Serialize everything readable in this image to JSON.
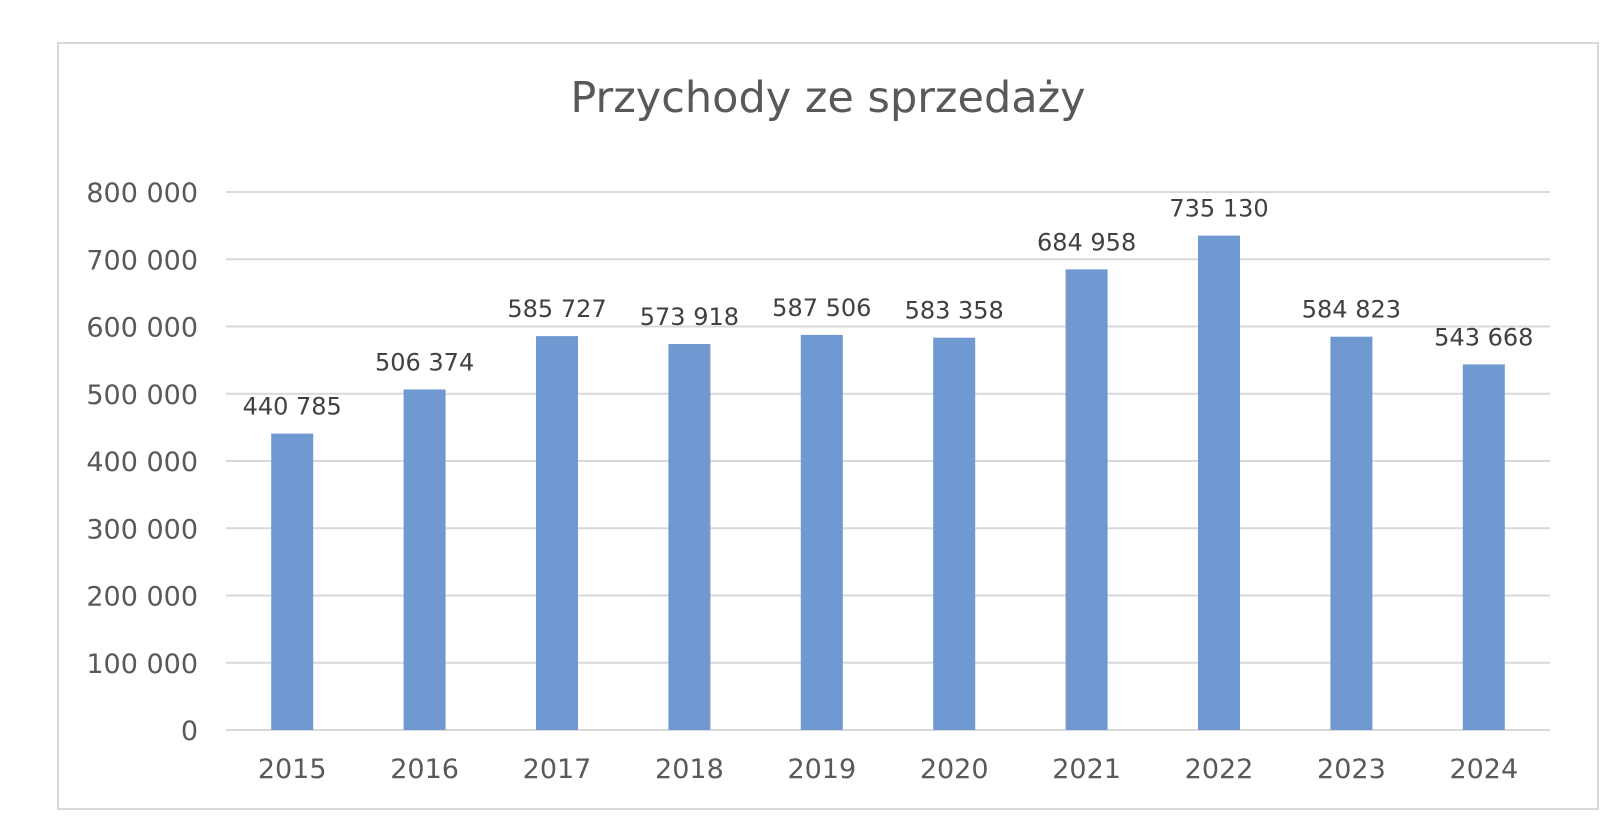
{
  "chart_data": {
    "type": "bar",
    "title": "Przychody ze sprzedaży",
    "xlabel": "",
    "ylabel": "",
    "categories": [
      "2015",
      "2016",
      "2017",
      "2018",
      "2019",
      "2020",
      "2021",
      "2022",
      "2023",
      "2024"
    ],
    "values": [
      440785,
      506374,
      585727,
      573918,
      587506,
      583358,
      684958,
      735130,
      584823,
      543668
    ],
    "value_labels": [
      "440 785",
      "506 374",
      "585 727",
      "573 918",
      "587 506",
      "583 358",
      "684 958",
      "735 130",
      "584 823",
      "543 668"
    ],
    "ylim": [
      0,
      800000
    ],
    "yticks": [
      0,
      100000,
      200000,
      300000,
      400000,
      500000,
      600000,
      700000,
      800000
    ],
    "ytick_labels": [
      "0",
      "100 000",
      "200 000",
      "300 000",
      "400 000",
      "500 000",
      "600 000",
      "700 000",
      "800 000"
    ],
    "grid": true,
    "legend": "none",
    "bar_color": "#7099d1"
  }
}
